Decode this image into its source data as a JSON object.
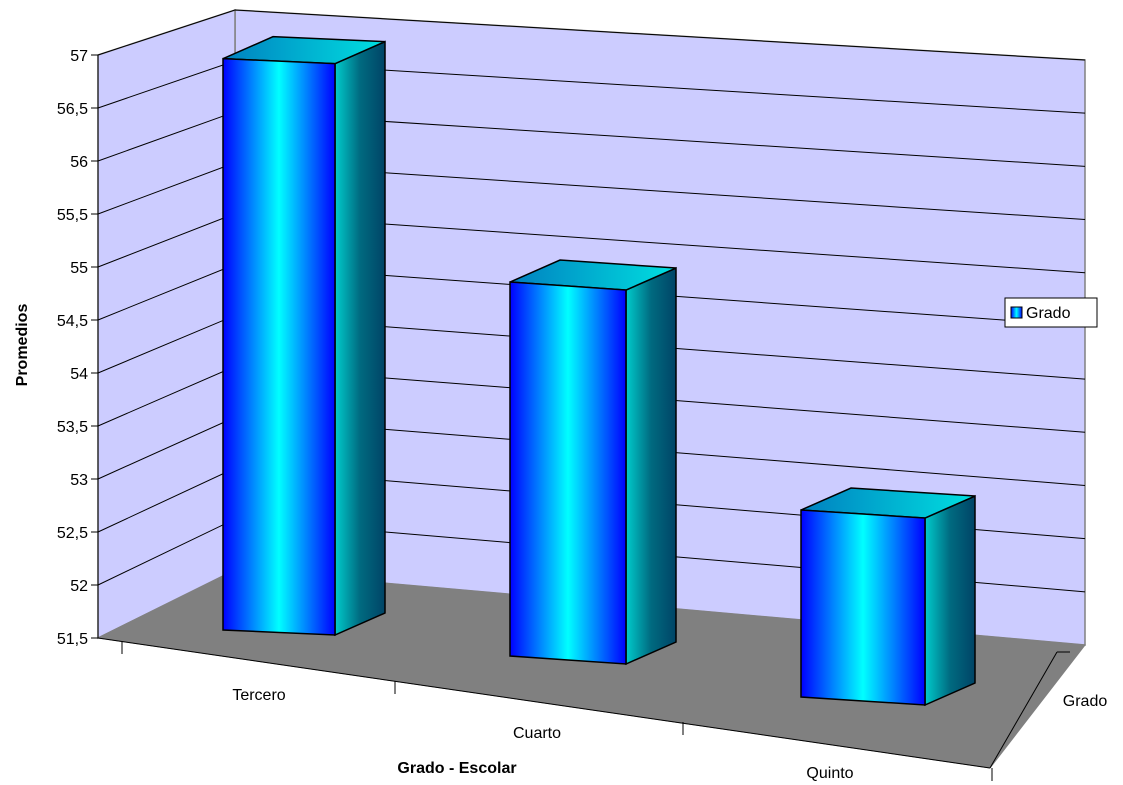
{
  "chart_data": {
    "type": "bar",
    "style": "3d-column",
    "categories": [
      "Tercero",
      "Cuarto",
      "Quinto"
    ],
    "series": [
      {
        "name": "Grado",
        "values": [
          57,
          55.1,
          53.3
        ]
      }
    ],
    "xlabel": "Grado - Escolar",
    "ylabel": "Promedios",
    "depth_axis_label": "Grado",
    "ylim": [
      51.5,
      57
    ],
    "ytick_step": 0.5,
    "ytick_labels": [
      "51,5",
      "52",
      "52,5",
      "53",
      "53,5",
      "54",
      "54,5",
      "55",
      "55,5",
      "56",
      "56,5",
      "57"
    ],
    "grid": true,
    "legend": {
      "position": "right",
      "entries": [
        "Grado"
      ]
    },
    "colors": {
      "wall": "#ccccff",
      "floor": "#808080",
      "bar_dark": "#0000ff",
      "bar_light": "#00ffff",
      "bar_side": "#006a80",
      "bar_top": "#00b0d0"
    }
  }
}
